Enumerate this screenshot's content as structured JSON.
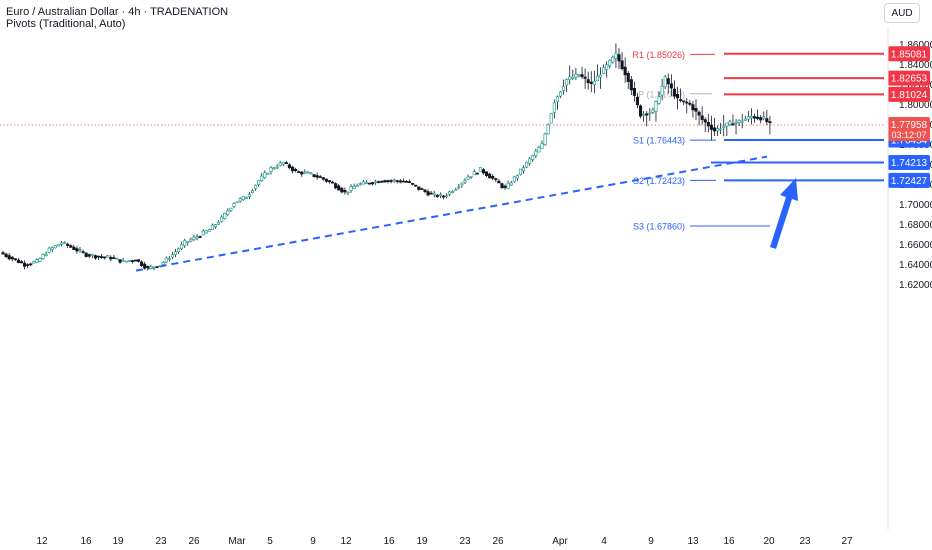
{
  "header": {
    "title": "Euro / Australian Dollar · 4h · TRADENATION",
    "subtitle": "Pivots (Traditional, Auto)",
    "currency": "AUD"
  },
  "colors": {
    "up": "#26a69a",
    "down": "#ef5350",
    "resistance": "#f23645",
    "support": "#2962ff",
    "candle_body": "#131722"
  },
  "chart_data": {
    "type": "candlestick",
    "symbol": "EURAUD",
    "timeframe": "4h",
    "ylim": [
      1.615,
      1.866
    ],
    "yticks": [
      "1.86000",
      "1.84000",
      "1.82000",
      "1.80000",
      "1.78000",
      "1.76000",
      "1.74000",
      "1.72000",
      "1.70000",
      "1.68000",
      "1.66000",
      "1.64000",
      "1.62000"
    ],
    "xticks": [
      "12",
      "16",
      "19",
      "23",
      "26",
      "Mar",
      "5",
      "9",
      "12",
      "16",
      "19",
      "23",
      "26",
      "Apr",
      "4",
      "9",
      "13",
      "16",
      "20",
      "23",
      "27"
    ],
    "price_path": [
      [
        0,
        1.652
      ],
      [
        4,
        1.646
      ],
      [
        8,
        1.64
      ],
      [
        12,
        1.643
      ],
      [
        16,
        1.655
      ],
      [
        20,
        1.662
      ],
      [
        24,
        1.656
      ],
      [
        28,
        1.65
      ],
      [
        32,
        1.648
      ],
      [
        36,
        1.647
      ],
      [
        40,
        1.643
      ],
      [
        44,
        1.645
      ],
      [
        48,
        1.636
      ],
      [
        52,
        1.64
      ],
      [
        56,
        1.65
      ],
      [
        60,
        1.662
      ],
      [
        64,
        1.668
      ],
      [
        68,
        1.675
      ],
      [
        72,
        1.686
      ],
      [
        76,
        1.702
      ],
      [
        80,
        1.708
      ],
      [
        84,
        1.724
      ],
      [
        88,
        1.736
      ],
      [
        92,
        1.742
      ],
      [
        96,
        1.733
      ],
      [
        100,
        1.731
      ],
      [
        104,
        1.727
      ],
      [
        108,
        1.721
      ],
      [
        112,
        1.712
      ],
      [
        116,
        1.72
      ],
      [
        120,
        1.722
      ],
      [
        124,
        1.724
      ],
      [
        128,
        1.724
      ],
      [
        132,
        1.723
      ],
      [
        136,
        1.716
      ],
      [
        140,
        1.71
      ],
      [
        144,
        1.708
      ],
      [
        148,
        1.717
      ],
      [
        152,
        1.728
      ],
      [
        156,
        1.735
      ],
      [
        160,
        1.726
      ],
      [
        164,
        1.716
      ],
      [
        168,
        1.73
      ],
      [
        172,
        1.745
      ],
      [
        176,
        1.76
      ],
      [
        180,
        1.803
      ],
      [
        184,
        1.825
      ],
      [
        188,
        1.83
      ],
      [
        192,
        1.82
      ],
      [
        196,
        1.835
      ],
      [
        200,
        1.85
      ],
      [
        204,
        1.825
      ],
      [
        208,
        1.79
      ],
      [
        212,
        1.793
      ],
      [
        216,
        1.826
      ],
      [
        220,
        1.805
      ],
      [
        224,
        1.8
      ],
      [
        228,
        1.785
      ],
      [
        232,
        1.774
      ],
      [
        236,
        1.78
      ],
      [
        240,
        1.783
      ],
      [
        244,
        1.788
      ],
      [
        248,
        1.786
      ],
      [
        250,
        1.78
      ]
    ],
    "pivots": [
      {
        "name": "R1",
        "label": "R1 (1.85026)",
        "value": 1.85026,
        "color": "#f23645"
      },
      {
        "name": "P",
        "label": "P (1.81080)",
        "value": 1.8108,
        "color": "#aeb5c2"
      },
      {
        "name": "S1",
        "label": "S1 (1.76443)",
        "value": 1.76443,
        "color": "#2962ff"
      },
      {
        "name": "S2",
        "label": "S2 (1.72423)",
        "value": 1.72423,
        "color": "#2962ff"
      },
      {
        "name": "S3",
        "label": "S3 (1.67860)",
        "value": 1.6786,
        "color": "#2962ff"
      }
    ],
    "levels": [
      {
        "value": 1.85081,
        "label": "1.85081",
        "kind": "resistance"
      },
      {
        "value": 1.82653,
        "label": "1.82653",
        "kind": "resistance"
      },
      {
        "value": 1.81024,
        "label": "1.81024",
        "kind": "resistance"
      },
      {
        "value": 1.76454,
        "label": "1.76454",
        "kind": "support"
      },
      {
        "value": 1.74213,
        "label": "1.74213",
        "kind": "support"
      },
      {
        "value": 1.72427,
        "label": "1.72427",
        "kind": "support"
      }
    ],
    "current": {
      "value": 1.77958,
      "label": "1.77958",
      "countdown": "03:12:07"
    },
    "trendline": {
      "from": [
        0,
        1.634
      ],
      "to": [
        4.5,
        1.748
      ],
      "style": "dashed"
    },
    "forecast_arrow": {
      "direction": "up"
    }
  }
}
